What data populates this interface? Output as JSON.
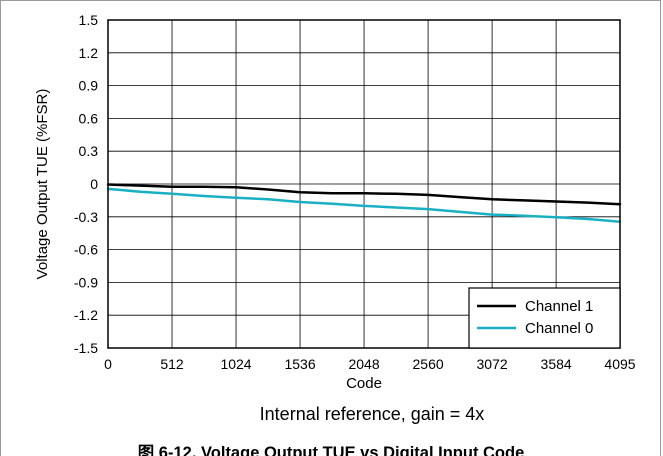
{
  "chart_data": {
    "type": "line",
    "xlabel": "Code",
    "ylabel": "Voltage Output TUE (%FSR)",
    "annotation": "Internal reference, gain = 4x",
    "caption": "图 6-12. Voltage Output TUE vs Digital Input Code",
    "xlim": [
      0,
      4095
    ],
    "ylim": [
      -1.5,
      1.5
    ],
    "x_ticks": [
      "0",
      "512",
      "1024",
      "1536",
      "2048",
      "2560",
      "3072",
      "3584",
      "4095"
    ],
    "x_tick_values": [
      0,
      512,
      1024,
      1536,
      2048,
      2560,
      3072,
      3584,
      4095
    ],
    "y_ticks": [
      "1.5",
      "1.2",
      "0.9",
      "0.6",
      "0.3",
      "0",
      "-0.3",
      "-0.6",
      "-0.9",
      "-1.2",
      "-1.5"
    ],
    "y_tick_values": [
      1.5,
      1.2,
      0.9,
      0.6,
      0.3,
      0,
      -0.3,
      -0.6,
      -0.9,
      -1.2,
      -1.5
    ],
    "grid": true,
    "legend_position": "bottom-right",
    "series": [
      {
        "name": "Channel 1",
        "color": "#000000",
        "x": [
          0,
          256,
          512,
          768,
          1024,
          1280,
          1536,
          1792,
          2048,
          2304,
          2560,
          2816,
          3072,
          3328,
          3584,
          3840,
          4095
        ],
        "y": [
          -0.005,
          -0.015,
          -0.025,
          -0.025,
          -0.03,
          -0.05,
          -0.075,
          -0.085,
          -0.085,
          -0.09,
          -0.1,
          -0.12,
          -0.14,
          -0.15,
          -0.16,
          -0.17,
          -0.185
        ]
      },
      {
        "name": "Channel 0",
        "color": "#1ab0c4",
        "x": [
          0,
          256,
          512,
          768,
          1024,
          1280,
          1536,
          1792,
          2048,
          2304,
          2560,
          2816,
          3072,
          3328,
          3584,
          3840,
          4095
        ],
        "y": [
          -0.045,
          -0.07,
          -0.09,
          -0.11,
          -0.125,
          -0.14,
          -0.165,
          -0.18,
          -0.2,
          -0.215,
          -0.23,
          -0.255,
          -0.28,
          -0.29,
          -0.305,
          -0.32,
          -0.345
        ]
      }
    ]
  }
}
